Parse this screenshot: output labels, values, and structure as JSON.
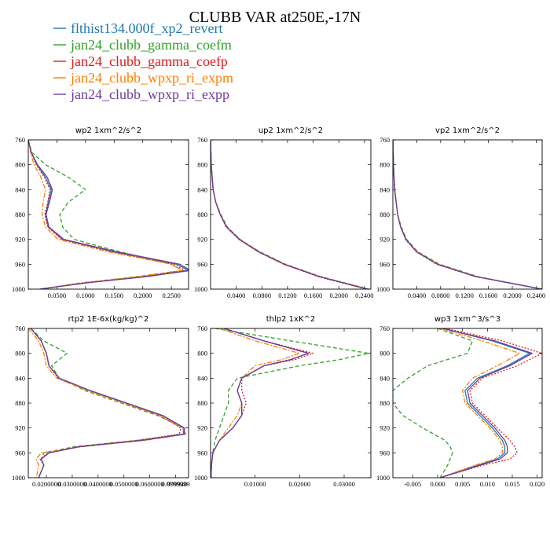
{
  "title": "CLUBB VAR at250E,-17N",
  "legend": [
    {
      "label": "flthist134.000f_xp2_revert",
      "color": "#1f78b4",
      "dash": "solid"
    },
    {
      "label": "jan24_clubb_gamma_coefm",
      "color": "#33a02c",
      "dash": "dashed"
    },
    {
      "label": "jan24_clubb_gamma_coefp",
      "color": "#e31a1c",
      "dash": "dotted"
    },
    {
      "label": "jan24_clubb_wpxp_ri_expm",
      "color": "#ff7f00",
      "dash": "dashdot"
    },
    {
      "label": "jan24_clubb_wpxp_ri_expp",
      "color": "#6a3d9a",
      "dash": "solid"
    }
  ],
  "chart_data": [
    {
      "type": "line",
      "title": "wp2  1xm^2/s^2",
      "xlim": [
        0.0,
        0.28
      ],
      "ylim": [
        760,
        1000
      ],
      "xticks": [
        0.05,
        0.1,
        0.15,
        0.2,
        0.25
      ],
      "xtick_labels": [
        "0.0500",
        "0.1000",
        "0.1500",
        "0.2000",
        "0.2500"
      ],
      "yticks": [
        760,
        800,
        840,
        880,
        920,
        960,
        1000
      ],
      "y": [
        760,
        780,
        800,
        820,
        840,
        860,
        880,
        900,
        920,
        940,
        960,
        970,
        980,
        990,
        1000
      ],
      "series": [
        {
          "name": "flthist134.000f_xp2_revert",
          "values": [
            0.0,
            0.005,
            0.015,
            0.03,
            0.04,
            0.035,
            0.03,
            0.035,
            0.06,
            0.15,
            0.26,
            0.28,
            0.2,
            0.1,
            0.02
          ]
        },
        {
          "name": "jan24_clubb_gamma_coefm",
          "values": [
            0.0,
            0.006,
            0.03,
            0.07,
            0.1,
            0.07,
            0.055,
            0.06,
            0.08,
            0.16,
            0.25,
            0.27,
            0.19,
            0.1,
            0.02
          ]
        },
        {
          "name": "jan24_clubb_gamma_coefp",
          "values": [
            0.0,
            0.005,
            0.014,
            0.028,
            0.038,
            0.034,
            0.029,
            0.034,
            0.058,
            0.145,
            0.255,
            0.275,
            0.2,
            0.1,
            0.02
          ]
        },
        {
          "name": "jan24_clubb_wpxp_ri_expm",
          "values": [
            0.0,
            0.004,
            0.01,
            0.022,
            0.03,
            0.026,
            0.024,
            0.03,
            0.052,
            0.14,
            0.25,
            0.268,
            0.19,
            0.09,
            0.02
          ]
        },
        {
          "name": "jan24_clubb_wpxp_ri_expp",
          "values": [
            0.0,
            0.005,
            0.016,
            0.033,
            0.042,
            0.037,
            0.031,
            0.036,
            0.062,
            0.155,
            0.265,
            0.283,
            0.205,
            0.1,
            0.02
          ]
        }
      ]
    },
    {
      "type": "line",
      "title": "up2  1xm^2/s^2",
      "xlim": [
        0.0,
        0.25
      ],
      "ylim": [
        760,
        1000
      ],
      "xticks": [
        0.04,
        0.08,
        0.12,
        0.16,
        0.2,
        0.24
      ],
      "xtick_labels": [
        "0.0400",
        "0.0800",
        "0.1200",
        "0.1600",
        "0.2000",
        "0.2400"
      ],
      "yticks": [
        760,
        800,
        840,
        880,
        920,
        960,
        1000
      ],
      "y": [
        760,
        800,
        840,
        860,
        880,
        900,
        920,
        940,
        960,
        980,
        1000
      ],
      "series": [
        {
          "name": "flthist134.000f_xp2_revert",
          "values": [
            0.0,
            0.001,
            0.004,
            0.008,
            0.015,
            0.025,
            0.045,
            0.075,
            0.115,
            0.17,
            0.245
          ]
        },
        {
          "name": "jan24_clubb_gamma_coefm",
          "values": [
            0.0,
            0.001,
            0.004,
            0.008,
            0.016,
            0.026,
            0.046,
            0.077,
            0.117,
            0.172,
            0.247
          ]
        },
        {
          "name": "jan24_clubb_gamma_coefp",
          "values": [
            0.0,
            0.001,
            0.004,
            0.008,
            0.015,
            0.024,
            0.044,
            0.074,
            0.114,
            0.168,
            0.243
          ]
        },
        {
          "name": "jan24_clubb_wpxp_ri_expm",
          "values": [
            0.0,
            0.001,
            0.004,
            0.008,
            0.015,
            0.025,
            0.046,
            0.076,
            0.116,
            0.171,
            0.246
          ]
        },
        {
          "name": "jan24_clubb_wpxp_ri_expp",
          "values": [
            0.0,
            0.001,
            0.004,
            0.008,
            0.015,
            0.025,
            0.045,
            0.075,
            0.115,
            0.17,
            0.245
          ]
        }
      ]
    },
    {
      "type": "line",
      "title": "vp2  1xm^2/s^2",
      "xlim": [
        0.0,
        0.25
      ],
      "ylim": [
        760,
        1000
      ],
      "xticks": [
        0.04,
        0.08,
        0.12,
        0.16,
        0.2,
        0.24
      ],
      "xtick_labels": [
        "0.0400",
        "0.0800",
        "0.1200",
        "0.1600",
        "0.2000",
        "0.2400"
      ],
      "yticks": [
        760,
        800,
        840,
        880,
        920,
        960,
        1000
      ],
      "y": [
        760,
        800,
        840,
        880,
        900,
        920,
        940,
        960,
        980,
        1000
      ],
      "series": [
        {
          "name": "flthist134.000f_xp2_revert",
          "values": [
            0.0,
            0.001,
            0.003,
            0.008,
            0.013,
            0.022,
            0.04,
            0.075,
            0.14,
            0.25
          ]
        },
        {
          "name": "jan24_clubb_gamma_coefm",
          "values": [
            0.0,
            0.001,
            0.003,
            0.008,
            0.014,
            0.023,
            0.042,
            0.078,
            0.143,
            0.25
          ]
        },
        {
          "name": "jan24_clubb_gamma_coefp",
          "values": [
            0.0,
            0.001,
            0.003,
            0.008,
            0.013,
            0.021,
            0.039,
            0.073,
            0.138,
            0.25
          ]
        },
        {
          "name": "jan24_clubb_wpxp_ri_expm",
          "values": [
            0.0,
            0.001,
            0.003,
            0.008,
            0.013,
            0.022,
            0.041,
            0.076,
            0.141,
            0.25
          ]
        },
        {
          "name": "jan24_clubb_wpxp_ri_expp",
          "values": [
            0.0,
            0.001,
            0.003,
            0.008,
            0.013,
            0.022,
            0.04,
            0.075,
            0.14,
            0.25
          ]
        }
      ]
    },
    {
      "type": "line",
      "title": "rtp2  1E-6x(kg/kg)^2",
      "xlim": [
        0.01,
        0.041
      ],
      "ylim": [
        760,
        1000
      ],
      "xticks": [
        0.0135,
        0.0185,
        0.0235,
        0.0285,
        0.0335,
        0.0385
      ],
      "xtick_labels": [
        "0.0200000",
        "0.0300000",
        "0.0400000",
        "0.0500000",
        "0.0600000",
        "0.0799999"
      ],
      "extra_tick_text": "999940",
      "yticks": [
        760,
        800,
        840,
        880,
        920,
        960,
        1000
      ],
      "y": [
        760,
        780,
        800,
        820,
        840,
        860,
        880,
        900,
        920,
        930,
        940,
        950,
        960,
        970,
        980,
        990,
        1000
      ],
      "series": [
        {
          "name": "flthist134.000f_xp2_revert",
          "values": [
            0.0105,
            0.0125,
            0.0135,
            0.014,
            0.016,
            0.022,
            0.029,
            0.036,
            0.04,
            0.04,
            0.032,
            0.02,
            0.014,
            0.0125,
            0.013,
            0.0125,
            0.012
          ]
        },
        {
          "name": "jan24_clubb_gamma_coefm",
          "values": [
            0.0105,
            0.013,
            0.0175,
            0.0145,
            0.016,
            0.021,
            0.028,
            0.035,
            0.04,
            0.04,
            0.031,
            0.019,
            0.013,
            0.0125,
            0.013,
            0.0125,
            0.012
          ]
        },
        {
          "name": "jan24_clubb_gamma_coefp",
          "values": [
            0.0105,
            0.0125,
            0.0135,
            0.014,
            0.0158,
            0.0218,
            0.0288,
            0.0355,
            0.0395,
            0.0392,
            0.031,
            0.0198,
            0.0138,
            0.0123,
            0.013,
            0.0125,
            0.012
          ]
        },
        {
          "name": "jan24_clubb_wpxp_ri_expm",
          "values": [
            0.01,
            0.012,
            0.013,
            0.0135,
            0.0155,
            0.0215,
            0.0285,
            0.0355,
            0.0398,
            0.0405,
            0.0325,
            0.0205,
            0.0125,
            0.0115,
            0.012,
            0.0118,
            0.0115
          ]
        },
        {
          "name": "jan24_clubb_wpxp_ri_expp",
          "values": [
            0.0105,
            0.0125,
            0.0135,
            0.014,
            0.016,
            0.022,
            0.029,
            0.036,
            0.0402,
            0.0402,
            0.032,
            0.02,
            0.014,
            0.0125,
            0.013,
            0.0125,
            0.012
          ]
        }
      ]
    },
    {
      "type": "line",
      "title": "thlp2  1xK^2",
      "xlim": [
        0.0,
        0.036
      ],
      "ylim": [
        760,
        1000
      ],
      "xticks": [
        0.01,
        0.02,
        0.03
      ],
      "xtick_labels": [
        "0.01000",
        "0.02000",
        "0.03000"
      ],
      "yticks": [
        760,
        800,
        840,
        880,
        920,
        960,
        1000
      ],
      "y": [
        760,
        780,
        800,
        810,
        820,
        840,
        860,
        880,
        900,
        920,
        940,
        960,
        980,
        1000
      ],
      "series": [
        {
          "name": "flthist134.000f_xp2_revert",
          "values": [
            0.003,
            0.012,
            0.022,
            0.018,
            0.012,
            0.007,
            0.006,
            0.007,
            0.007,
            0.005,
            0.002,
            0.0005,
            0.0002,
            0.0001
          ]
        },
        {
          "name": "jan24_clubb_gamma_coefm",
          "values": [
            0.001,
            0.018,
            0.0355,
            0.029,
            0.02,
            0.006,
            0.004,
            0.004,
            0.003,
            0.002,
            0.001,
            0.0005,
            0.0002,
            0.0001
          ]
        },
        {
          "name": "jan24_clubb_gamma_coefp",
          "values": [
            0.003,
            0.012,
            0.023,
            0.019,
            0.012,
            0.007,
            0.007,
            0.008,
            0.007,
            0.005,
            0.002,
            0.0005,
            0.0002,
            0.0001
          ]
        },
        {
          "name": "jan24_clubb_wpxp_ri_expm",
          "values": [
            0.002,
            0.01,
            0.02,
            0.016,
            0.01,
            0.007,
            0.006,
            0.007,
            0.006,
            0.004,
            0.002,
            0.0005,
            0.0002,
            0.0001
          ]
        },
        {
          "name": "jan24_clubb_wpxp_ri_expp",
          "values": [
            0.003,
            0.012,
            0.022,
            0.018,
            0.012,
            0.007,
            0.006,
            0.007,
            0.007,
            0.005,
            0.002,
            0.0005,
            0.0002,
            0.0001
          ]
        }
      ]
    },
    {
      "type": "line",
      "title": "wp3  1xm^3/s^3",
      "xlim": [
        -0.009,
        0.021
      ],
      "ylim": [
        760,
        1000
      ],
      "xticks": [
        -0.005,
        0.0,
        0.005,
        0.01,
        0.015,
        0.02
      ],
      "xtick_labels": [
        "-0.005",
        "0.000",
        "0.005",
        "0.010",
        "0.015",
        "0.020"
      ],
      "yticks": [
        760,
        800,
        840,
        880,
        920,
        960,
        1000
      ],
      "y": [
        760,
        780,
        800,
        820,
        840,
        860,
        880,
        900,
        920,
        940,
        950,
        960,
        970,
        980,
        1000
      ],
      "series": [
        {
          "name": "flthist134.000f_xp2_revert",
          "values": [
            0.001,
            0.011,
            0.0185,
            0.014,
            0.008,
            0.0055,
            0.006,
            0.0085,
            0.011,
            0.013,
            0.0135,
            0.0135,
            0.012,
            0.008,
            0.0005
          ]
        },
        {
          "name": "jan24_clubb_gamma_coefm",
          "values": [
            0.0,
            0.007,
            0.006,
            -0.002,
            -0.006,
            -0.009,
            -0.009,
            -0.007,
            -0.003,
            0.0015,
            0.0025,
            0.003,
            0.0025,
            0.002,
            0.0005
          ]
        },
        {
          "name": "jan24_clubb_gamma_coefp",
          "values": [
            0.0015,
            0.013,
            0.021,
            0.016,
            0.009,
            0.0065,
            0.007,
            0.0095,
            0.012,
            0.0145,
            0.0155,
            0.016,
            0.0145,
            0.009,
            0.0005
          ]
        },
        {
          "name": "jan24_clubb_wpxp_ri_expm",
          "values": [
            0.0005,
            0.009,
            0.0165,
            0.012,
            0.007,
            0.005,
            0.0055,
            0.008,
            0.0105,
            0.0125,
            0.013,
            0.013,
            0.0115,
            0.0075,
            0.0005
          ]
        },
        {
          "name": "jan24_clubb_wpxp_ri_expp",
          "values": [
            0.001,
            0.0115,
            0.019,
            0.0145,
            0.0085,
            0.006,
            0.0065,
            0.009,
            0.0115,
            0.0135,
            0.014,
            0.014,
            0.0125,
            0.0085,
            0.0005
          ]
        }
      ]
    }
  ]
}
